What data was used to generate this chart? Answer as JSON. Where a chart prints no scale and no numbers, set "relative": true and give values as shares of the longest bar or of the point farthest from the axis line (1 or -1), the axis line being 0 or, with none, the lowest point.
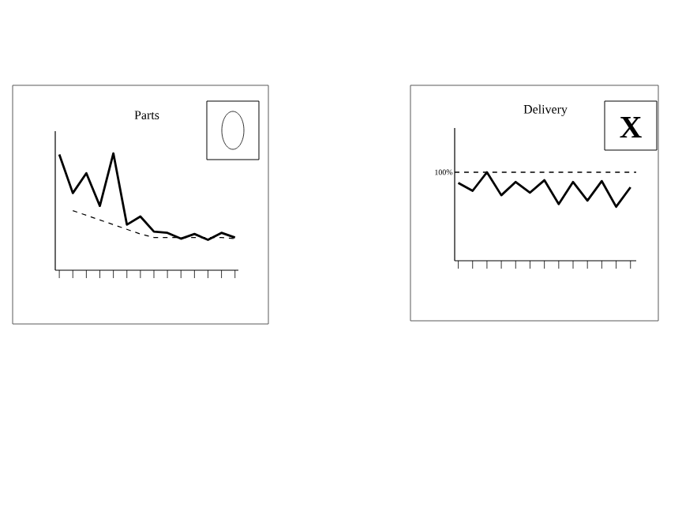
{
  "chart_data": [
    {
      "type": "line",
      "title": "Parts",
      "relative": true,
      "categories": [
        null,
        null,
        null,
        null,
        null,
        null,
        null,
        null,
        null,
        null,
        null,
        null,
        null,
        null
      ],
      "series": [
        {
          "color": "#000000",
          "line_style": "solid",
          "values": [
            0.99,
            0.66,
            0.83,
            0.55,
            1.0,
            0.39,
            0.46,
            0.33,
            0.32,
            0.27,
            0.31,
            0.26,
            0.32,
            0.28
          ]
        },
        {
          "color": "#000000",
          "line_style": "dashed",
          "values": [
            null,
            0.51,
            0.47,
            0.43,
            0.39,
            0.35,
            0.31,
            0.28,
            0.28,
            0.28,
            0.28,
            0.28,
            0.28,
            0.27
          ]
        }
      ]
    },
    {
      "type": "line",
      "title": "Delivery",
      "relative": true,
      "categories": [
        null,
        null,
        null,
        null,
        null,
        null,
        null,
        null,
        null,
        null,
        null,
        null,
        null
      ],
      "series": [
        {
          "color": "#000000",
          "line_style": "solid",
          "values": [
            0.88,
            0.79,
            1.0,
            0.74,
            0.89,
            0.77,
            0.91,
            0.64,
            0.89,
            0.68,
            0.9,
            0.61,
            0.83
          ]
        }
      ],
      "ref_lines": [
        {
          "axis": "y",
          "value": 1,
          "label": "100%",
          "line_style": "dashed",
          "color": "#000000"
        }
      ],
      "annotations": [
        "X"
      ]
    }
  ]
}
